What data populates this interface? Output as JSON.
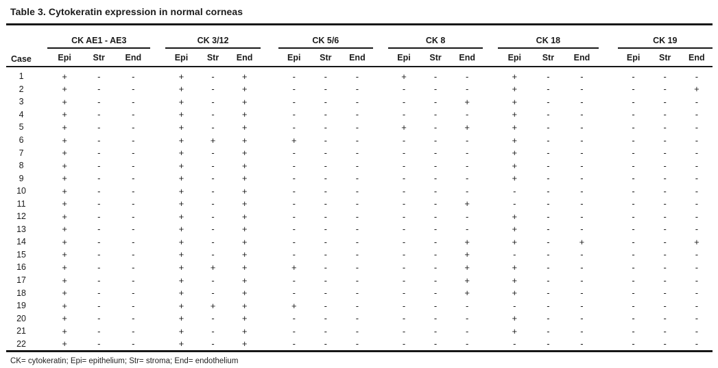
{
  "title": "Table 3. Cytokeratin expression in normal corneas",
  "footnote": "CK= cytokeratin; Epi= epithelium; Str= stroma; End= endothelium",
  "table": {
    "case_header": "Case",
    "sub_headers": [
      "Epi",
      "Str",
      "End"
    ],
    "groups": [
      {
        "label": "CK AE1 - AE3"
      },
      {
        "label": "CK 3/12"
      },
      {
        "label": "CK 5/6"
      },
      {
        "label": "CK 8"
      },
      {
        "label": "CK 18"
      },
      {
        "label": "CK 19"
      }
    ],
    "rows": [
      {
        "case": "1",
        "values": [
          "+",
          "-",
          "-",
          "+",
          "-",
          "+",
          "-",
          "-",
          "-",
          "+",
          "-",
          "-",
          "+",
          "-",
          "-",
          "-",
          "-",
          "-"
        ]
      },
      {
        "case": "2",
        "values": [
          "+",
          "-",
          "-",
          "+",
          "-",
          "+",
          "-",
          "-",
          "-",
          "-",
          "-",
          "-",
          "+",
          "-",
          "-",
          "-",
          "-",
          "+"
        ]
      },
      {
        "case": "3",
        "values": [
          "+",
          "-",
          "-",
          "+",
          "-",
          "+",
          "-",
          "-",
          "-",
          "-",
          "-",
          "+",
          "+",
          "-",
          "-",
          "-",
          "-",
          "-"
        ]
      },
      {
        "case": "4",
        "values": [
          "+",
          "-",
          "-",
          "+",
          "-",
          "+",
          "-",
          "-",
          "-",
          "-",
          "-",
          "-",
          "+",
          "-",
          "-",
          "-",
          "-",
          "-"
        ]
      },
      {
        "case": "5",
        "values": [
          "+",
          "-",
          "-",
          "+",
          "-",
          "+",
          "-",
          "-",
          "-",
          "+",
          "-",
          "+",
          "+",
          "-",
          "-",
          "-",
          "-",
          "-"
        ]
      },
      {
        "case": "6",
        "values": [
          "+",
          "-",
          "-",
          "+",
          "+",
          "+",
          "+",
          "-",
          "-",
          "-",
          "-",
          "-",
          "+",
          "-",
          "-",
          "-",
          "-",
          "-"
        ]
      },
      {
        "case": "7",
        "values": [
          "+",
          "-",
          "-",
          "+",
          "-",
          "+",
          "-",
          "-",
          "-",
          "-",
          "-",
          "-",
          "+",
          "-",
          "-",
          "-",
          "-",
          "-"
        ]
      },
      {
        "case": "8",
        "values": [
          "+",
          "-",
          "-",
          "+",
          "-",
          "+",
          "-",
          "-",
          "-",
          "-",
          "-",
          "-",
          "+",
          "-",
          "-",
          "-",
          "-",
          "-"
        ]
      },
      {
        "case": "9",
        "values": [
          "+",
          "-",
          "-",
          "+",
          "-",
          "+",
          "-",
          "-",
          "-",
          "-",
          "-",
          "-",
          "+",
          "-",
          "-",
          "-",
          "-",
          "-"
        ]
      },
      {
        "case": "10",
        "values": [
          "+",
          "-",
          "-",
          "+",
          "-",
          "+",
          "-",
          "-",
          "-",
          "-",
          "-",
          "-",
          "-",
          "-",
          "-",
          "-",
          "-",
          "-"
        ]
      },
      {
        "case": "11",
        "values": [
          "+",
          "-",
          "-",
          "+",
          "-",
          "+",
          "-",
          "-",
          "-",
          "-",
          "-",
          "+",
          "-",
          "-",
          "-",
          "-",
          "-",
          "-"
        ]
      },
      {
        "case": "12",
        "values": [
          "+",
          "-",
          "-",
          "+",
          "-",
          "+",
          "-",
          "-",
          "-",
          "-",
          "-",
          "-",
          "+",
          "-",
          "-",
          "-",
          "-",
          "-"
        ]
      },
      {
        "case": "13",
        "values": [
          "+",
          "-",
          "-",
          "+",
          "-",
          "+",
          "-",
          "-",
          "-",
          "-",
          "-",
          "-",
          "+",
          "-",
          "-",
          "-",
          "-",
          "-"
        ]
      },
      {
        "case": "14",
        "values": [
          "+",
          "-",
          "-",
          "+",
          "-",
          "+",
          "-",
          "-",
          "-",
          "-",
          "-",
          "+",
          "+",
          "-",
          "+",
          "-",
          "-",
          "+"
        ]
      },
      {
        "case": "15",
        "values": [
          "+",
          "-",
          "-",
          "+",
          "-",
          "+",
          "-",
          "-",
          "-",
          "-",
          "-",
          "+",
          "-",
          "-",
          "-",
          "-",
          "-",
          "-"
        ]
      },
      {
        "case": "16",
        "values": [
          "+",
          "-",
          "-",
          "+",
          "+",
          "+",
          "+",
          "-",
          "-",
          "-",
          "-",
          "+",
          "+",
          "-",
          "-",
          "-",
          "-",
          "-"
        ]
      },
      {
        "case": "17",
        "values": [
          "+",
          "-",
          "-",
          "+",
          "-",
          "+",
          "-",
          "-",
          "-",
          "-",
          "-",
          "+",
          "+",
          "-",
          "-",
          "-",
          "-",
          "-"
        ]
      },
      {
        "case": "18",
        "values": [
          "+",
          "-",
          "-",
          "+",
          "-",
          "+",
          "-",
          "-",
          "-",
          "-",
          "-",
          "+",
          "+",
          "-",
          "-",
          "-",
          "-",
          "-"
        ]
      },
      {
        "case": "19",
        "values": [
          "+",
          "-",
          "-",
          "+",
          "+",
          "+",
          "+",
          "-",
          "-",
          "-",
          "-",
          "-",
          "-",
          "-",
          "-",
          "-",
          "-",
          "-"
        ]
      },
      {
        "case": "20",
        "values": [
          "+",
          "-",
          "-",
          "+",
          "-",
          "+",
          "-",
          "-",
          "-",
          "-",
          "-",
          "-",
          "+",
          "-",
          "-",
          "-",
          "-",
          "-"
        ]
      },
      {
        "case": "21",
        "values": [
          "+",
          "-",
          "-",
          "+",
          "-",
          "+",
          "-",
          "-",
          "-",
          "-",
          "-",
          "-",
          "+",
          "-",
          "-",
          "-",
          "-",
          "-"
        ]
      },
      {
        "case": "22",
        "values": [
          "+",
          "-",
          "-",
          "+",
          "-",
          "+",
          "-",
          "-",
          "-",
          "-",
          "-",
          "-",
          "-",
          "-",
          "-",
          "-",
          "-",
          "-"
        ]
      }
    ]
  }
}
